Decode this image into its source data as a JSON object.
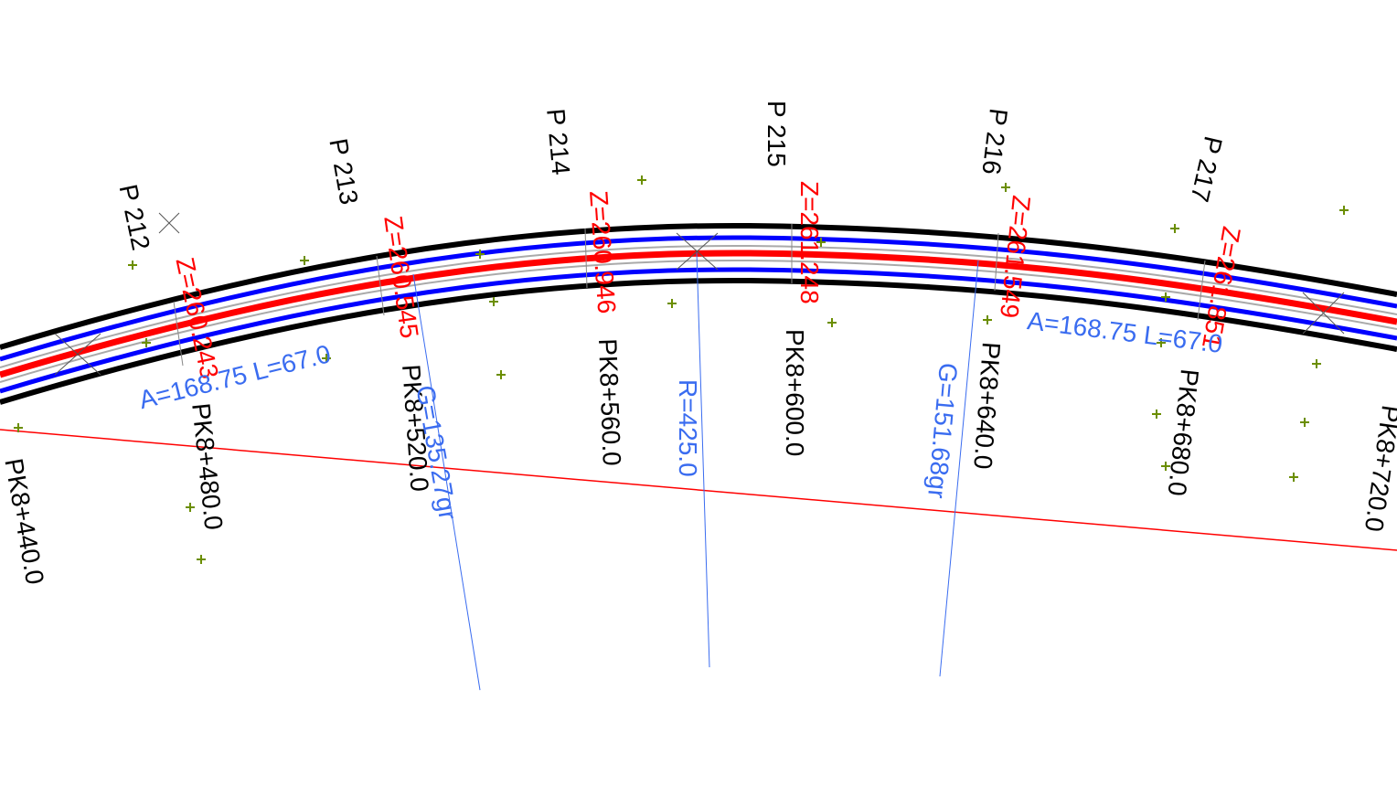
{
  "profiles": [
    "P 212",
    "P 213",
    "P 214",
    "P 215",
    "P 216",
    "P 217"
  ],
  "elevations": [
    "Z=260.243",
    "Z=260.545",
    "Z=260.946",
    "Z=261.248",
    "Z=261.549",
    "Z=261.851"
  ],
  "chainages": [
    "PK8+440.0",
    "PK8+480.0",
    "PK8+520.0",
    "PK8+560.0",
    "PK8+600.0",
    "PK8+640.0",
    "PK8+680.0",
    "PK8+720.0"
  ],
  "annotations": [
    "A=168.75  L=67.0",
    "G=135.27gr",
    "R=425.0",
    "G=151.68gr",
    "A=168.75  L=67.0"
  ]
}
